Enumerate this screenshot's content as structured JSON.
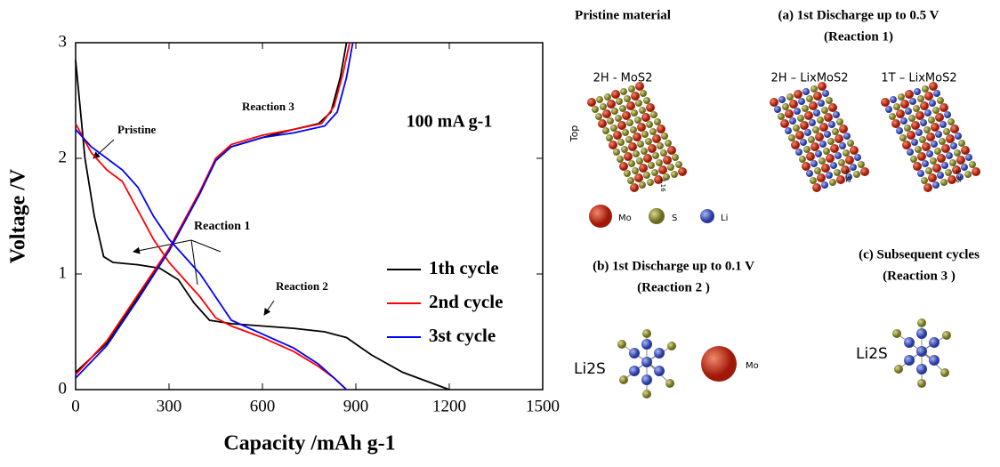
{
  "chart_data": {
    "type": "line",
    "x_label": "Capacity /mAh g-1",
    "y_label": "Voltage /V",
    "xlim": [
      0,
      1500
    ],
    "xticks": [
      0,
      300,
      600,
      900,
      1200,
      1500
    ],
    "ylim": [
      0,
      3
    ],
    "yticks": [
      0,
      1,
      2,
      3
    ],
    "legend": "center right",
    "annotations": [
      "100 mA g-1",
      "Pristine",
      "Reaction 1",
      "Reaction 2",
      "Reaction 3"
    ],
    "series": [
      {
        "name": "1th cycle",
        "color": "#000000",
        "x": [
          0,
          30,
          60,
          90,
          120,
          200,
          270,
          330,
          380,
          430,
          500,
          600,
          700,
          800,
          870,
          950,
          1050,
          1150,
          1200,
          null,
          0,
          100,
          200,
          300,
          400,
          450,
          500,
          600,
          700,
          780,
          820,
          850,
          870
        ],
        "values": [
          2.85,
          2.0,
          1.5,
          1.15,
          1.1,
          1.08,
          1.05,
          0.95,
          0.75,
          0.6,
          0.57,
          0.55,
          0.53,
          0.5,
          0.45,
          0.3,
          0.15,
          0.05,
          0,
          null,
          0.15,
          0.4,
          0.8,
          1.2,
          1.7,
          2.0,
          2.1,
          2.18,
          2.25,
          2.3,
          2.4,
          2.7,
          3.0
        ]
      },
      {
        "name": "2nd cycle",
        "color": "#ff0000",
        "x": [
          0,
          50,
          100,
          150,
          200,
          250,
          300,
          350,
          400,
          450,
          500,
          600,
          700,
          780,
          830,
          870,
          null,
          0,
          100,
          200,
          300,
          400,
          450,
          500,
          600,
          700,
          790,
          830,
          860,
          880
        ],
        "values": [
          2.3,
          2.05,
          1.9,
          1.8,
          1.55,
          1.3,
          1.1,
          0.95,
          0.8,
          0.62,
          0.55,
          0.45,
          0.33,
          0.2,
          0.1,
          0,
          null,
          0.13,
          0.42,
          0.82,
          1.22,
          1.72,
          2.0,
          2.12,
          2.2,
          2.25,
          2.3,
          2.45,
          2.75,
          3.0
        ]
      },
      {
        "name": "3st cycle",
        "color": "#0000ff",
        "x": [
          0,
          50,
          100,
          150,
          200,
          250,
          300,
          350,
          400,
          450,
          500,
          600,
          700,
          780,
          830,
          870,
          null,
          0,
          100,
          200,
          300,
          400,
          450,
          500,
          600,
          700,
          800,
          840,
          870,
          890
        ],
        "values": [
          2.25,
          2.1,
          2.0,
          1.9,
          1.75,
          1.5,
          1.3,
          1.15,
          1.0,
          0.8,
          0.6,
          0.48,
          0.36,
          0.22,
          0.1,
          0,
          null,
          0.1,
          0.38,
          0.78,
          1.2,
          1.7,
          1.98,
          2.1,
          2.18,
          2.22,
          2.28,
          2.4,
          2.7,
          3.0
        ]
      }
    ]
  },
  "panels": {
    "pristine": {
      "title": "Pristine  material",
      "structure": "2H - MoS2",
      "view": "Top",
      "spacing": "3.16"
    },
    "a": {
      "title": "(a) 1st Discharge  up to 0.5 V",
      "subtitle": "(Reaction 1)",
      "left": "2H – LixMoS2",
      "right": "1T – LixMoS2",
      "left_spacing": "3.32",
      "right_spacing": "3.36"
    },
    "key": [
      "Mo",
      "S",
      "Li"
    ],
    "b": {
      "title": "(b) 1st Discharge up to 0.1 V",
      "subtitle": "(Reaction 2 )",
      "product": "Li2S",
      "other": "Mo"
    },
    "c": {
      "title": "(c) Subsequent cycles",
      "subtitle": "(Reaction 3 )",
      "product": "Li2S"
    }
  }
}
